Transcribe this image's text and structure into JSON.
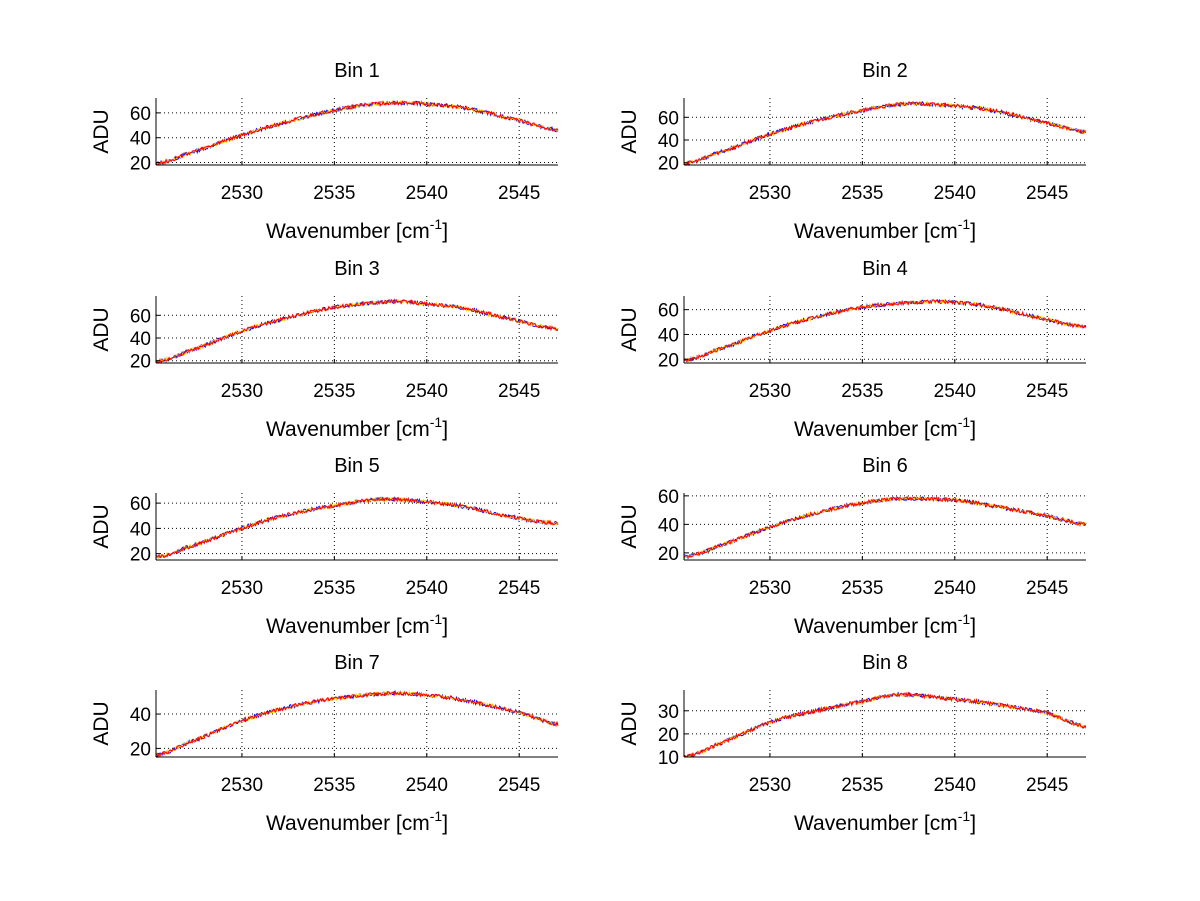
{
  "chart_data": {
    "type": "line",
    "layout": "4x2 subplots",
    "xlabel": "Wavenumber [cm",
    "xlabel_sup": "-1",
    "xlabel_close": "]",
    "ylabel": "ADU",
    "xlim": [
      2525.35,
      2547.1
    ],
    "xticks": [
      2530,
      2535,
      2540,
      2545
    ],
    "grid": true,
    "series_colors": [
      "#0000ff",
      "#ffcc00",
      "#ff0000"
    ],
    "subplots": [
      {
        "title": "Bin 1",
        "ylim": [
          18,
          72
        ],
        "yticks": [
          20,
          40,
          60
        ],
        "x": [
          2525.35,
          2527,
          2530,
          2532.5,
          2535,
          2537,
          2539,
          2540,
          2542,
          2545,
          2547.1
        ],
        "y": [
          19,
          27,
          42,
          53,
          62,
          67,
          68,
          67,
          64,
          54,
          46
        ]
      },
      {
        "title": "Bin 2",
        "ylim": [
          18,
          77
        ],
        "yticks": [
          20,
          40,
          60
        ],
        "x": [
          2525.35,
          2527,
          2530,
          2532.5,
          2535,
          2537.5,
          2540,
          2542,
          2545,
          2547.1
        ],
        "y": [
          19,
          28,
          45,
          57,
          66,
          72,
          70,
          66,
          55,
          47
        ]
      },
      {
        "title": "Bin 3",
        "ylim": [
          18,
          77
        ],
        "yticks": [
          20,
          40,
          60
        ],
        "x": [
          2525.35,
          2527,
          2530,
          2532.5,
          2535,
          2538,
          2540,
          2542,
          2545,
          2547.1
        ],
        "y": [
          19,
          28,
          46,
          58,
          67,
          72,
          70,
          66,
          55,
          48
        ]
      },
      {
        "title": "Bin 4",
        "ylim": [
          17,
          71
        ],
        "yticks": [
          20,
          40,
          60
        ],
        "x": [
          2525.35,
          2527,
          2530,
          2532.5,
          2535,
          2538,
          2540,
          2542,
          2545,
          2547.1
        ],
        "y": [
          19,
          27,
          43,
          54,
          62,
          66,
          66,
          62,
          52,
          46
        ]
      },
      {
        "title": "Bin 5",
        "ylim": [
          15,
          68
        ],
        "yticks": [
          20,
          40,
          60
        ],
        "x": [
          2525.35,
          2527,
          2530,
          2532.5,
          2535,
          2537.5,
          2540,
          2542,
          2545,
          2547.1
        ],
        "y": [
          17,
          25,
          40,
          51,
          58,
          63,
          61,
          57,
          48,
          44
        ]
      },
      {
        "title": "Bin 6",
        "ylim": [
          15,
          62
        ],
        "yticks": [
          20,
          40,
          60
        ],
        "x": [
          2525.35,
          2527,
          2530,
          2532.5,
          2535,
          2537,
          2540,
          2542,
          2545,
          2547.1
        ],
        "y": [
          17,
          24,
          38,
          48,
          55,
          58,
          57,
          53,
          46,
          40
        ]
      },
      {
        "title": "Bin 7",
        "ylim": [
          15,
          54
        ],
        "yticks": [
          20,
          40
        ],
        "x": [
          2525.35,
          2527,
          2530,
          2532.5,
          2535,
          2538,
          2540,
          2542,
          2545,
          2547.1
        ],
        "y": [
          16,
          23,
          36,
          44,
          49,
          52,
          51,
          48,
          41,
          34
        ]
      },
      {
        "title": "Bin 8",
        "ylim": [
          10,
          39
        ],
        "yticks": [
          10,
          20,
          30
        ],
        "x": [
          2525.35,
          2527,
          2530,
          2532.5,
          2535,
          2537,
          2540,
          2542,
          2545,
          2547.1
        ],
        "y": [
          10,
          15,
          25,
          30,
          34,
          37,
          35,
          33,
          29,
          23
        ]
      }
    ]
  }
}
